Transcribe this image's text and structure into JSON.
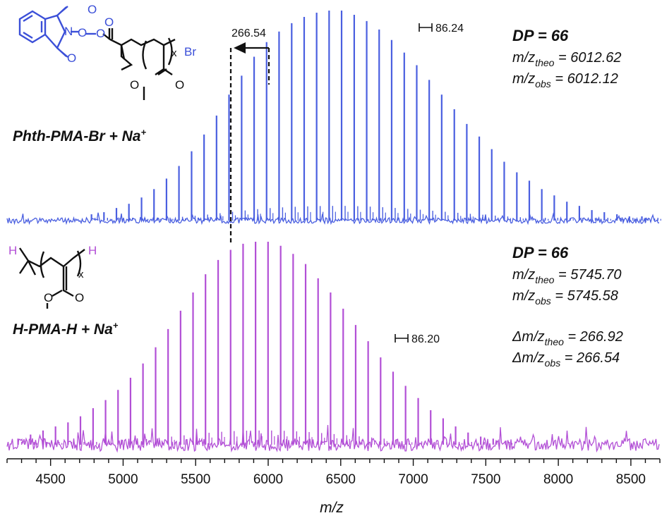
{
  "chart_data": [
    {
      "type": "line",
      "panel": "top",
      "color": "#4a5fe0",
      "compound": "Phth-PMA-Br + Na+",
      "compound_base": "Phth-PMA-Br + Na",
      "compound_sup": "+",
      "structure_labels": {
        "n": "N",
        "o": "O",
        "br": "Br",
        "x": "x"
      },
      "dp_label": "DP = 66",
      "theo": {
        "prefix": "m/z",
        "sub": "theo",
        "value": " = 6012.62"
      },
      "obs": {
        "prefix": "m/z",
        "sub": "obs",
        "value": " = 6012.12"
      },
      "spacing_label": "86.24",
      "shift_label": "266.54",
      "peak_spacing": 86.24,
      "peaks": {
        "x": [
          4782,
          4868,
          4954,
          5040,
          5127,
          5213,
          5299,
          5385,
          5472,
          5558,
          5644,
          5730,
          5817,
          5903,
          5989,
          6075,
          6162,
          6248,
          6334,
          6420,
          6506,
          6593,
          6679,
          6765,
          6851,
          6938,
          7024,
          7110,
          7196,
          7283,
          7369,
          7455,
          7541,
          7627,
          7714,
          7800,
          7886,
          7972,
          8059,
          8145,
          8231,
          8317,
          8404,
          8490,
          8576,
          8662
        ],
        "y": [
          3,
          4,
          6,
          8,
          11,
          15,
          20,
          26,
          33,
          41,
          50,
          60,
          69,
          78,
          85,
          90,
          94,
          97,
          99,
          100,
          100,
          98,
          95,
          91,
          86,
          80,
          74,
          67,
          60,
          53,
          46,
          40,
          34,
          28,
          23,
          19,
          15,
          12,
          9,
          7,
          5,
          4,
          3,
          2,
          2,
          1
        ]
      }
    },
    {
      "type": "line",
      "panel": "bottom",
      "color": "#b24fd6",
      "compound": "H-PMA-H + Na+",
      "compound_base": "H-PMA-H + Na",
      "compound_sup": "+",
      "structure_labels": {
        "h1": "H",
        "h2": "H",
        "o": "O",
        "x": "x"
      },
      "dp_label": "DP = 66",
      "theo": {
        "prefix": "m/z",
        "sub": "theo",
        "value": " = 5745.70"
      },
      "obs": {
        "prefix": "m/z",
        "sub": "obs",
        "value": " = 5745.58"
      },
      "delta_theo": {
        "prefix": "Δm/z",
        "sub": "theo",
        "value": " = 266.92"
      },
      "delta_obs": {
        "prefix": "Δm/z",
        "sub": "obs",
        "value": " = 266.54"
      },
      "spacing_label": "86.20",
      "peak_spacing": 86.2,
      "peaks": {
        "x": [
          4276,
          4362,
          4448,
          4534,
          4620,
          4706,
          4793,
          4879,
          4965,
          5051,
          5137,
          5224,
          5310,
          5396,
          5482,
          5568,
          5655,
          5741,
          5827,
          5913,
          5999,
          6086,
          6172,
          6258,
          6344,
          6430,
          6517,
          6603,
          6689,
          6775,
          6861,
          6947,
          7034,
          7120,
          7206,
          7292,
          7378,
          7465,
          7551,
          7637
        ],
        "y": [
          3,
          5,
          7,
          9,
          11,
          14,
          18,
          22,
          27,
          33,
          40,
          48,
          57,
          66,
          75,
          84,
          91,
          96,
          99,
          100,
          100,
          98,
          94,
          89,
          82,
          75,
          67,
          59,
          51,
          43,
          36,
          29,
          23,
          17,
          13,
          9,
          6,
          4,
          3,
          2
        ]
      }
    }
  ],
  "xaxis": {
    "label": "m/z",
    "min": 4200,
    "max": 8700,
    "ticks": [
      "4500",
      "5000",
      "5500",
      "6000",
      "6500",
      "7000",
      "7500",
      "8000",
      "8500"
    ],
    "tick_values": [
      4500,
      5000,
      5500,
      6000,
      6500,
      7000,
      7500,
      8000,
      8500
    ]
  }
}
